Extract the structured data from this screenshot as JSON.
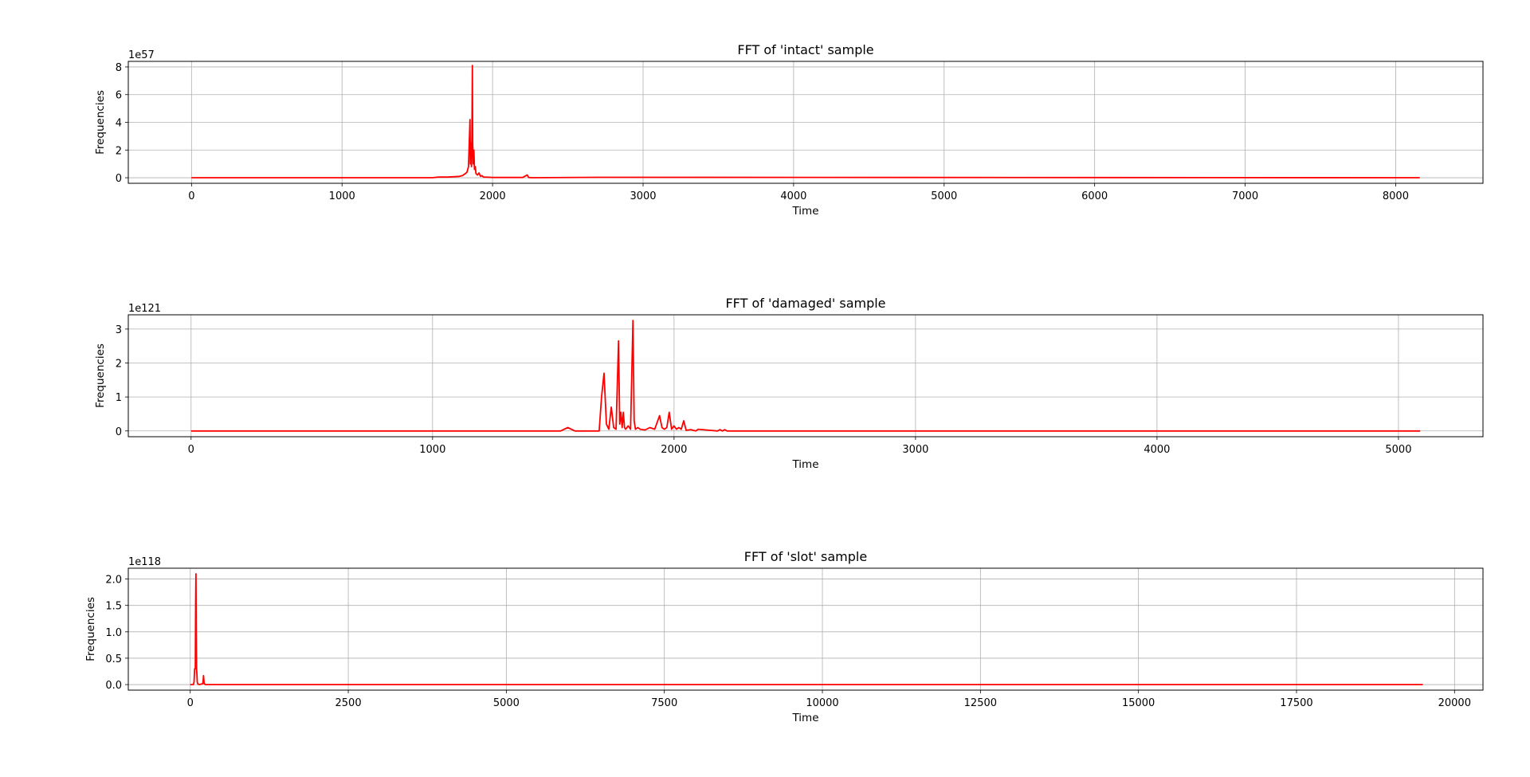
{
  "chart_data": [
    {
      "type": "line",
      "title": "FFT of 'intact' sample",
      "xlabel": "Time",
      "ylabel": "Frequencies",
      "y_offset_label": "1e57",
      "xlim": [
        -420,
        8580
      ],
      "ylim": [
        -0.4,
        8.4
      ],
      "xticks": [
        0,
        1000,
        2000,
        3000,
        4000,
        5000,
        6000,
        7000,
        8000
      ],
      "yticks": [
        0,
        2,
        4,
        6,
        8
      ],
      "ytick_labels": [
        "0",
        "2",
        "4",
        "6",
        "8"
      ],
      "grid": true,
      "color": "#ff0000",
      "series": [
        {
          "x": [
            0,
            1600,
            1640,
            1700,
            1750,
            1780,
            1800,
            1820,
            1830,
            1840,
            1850,
            1853,
            1857,
            1860,
            1863,
            1866,
            1868,
            1872,
            1876,
            1880,
            1885,
            1890,
            1900,
            1910,
            1920,
            1930,
            1940,
            1960,
            2000,
            2200,
            2230,
            2240,
            2260,
            2700,
            8160
          ],
          "y": [
            0,
            0,
            0.05,
            0.05,
            0.08,
            0.1,
            0.15,
            0.3,
            0.4,
            0.8,
            4.2,
            1.0,
            2.5,
            0.8,
            3.0,
            8.1,
            2.5,
            1.0,
            2.0,
            0.6,
            0.8,
            0.3,
            0.2,
            0.35,
            0.1,
            0.15,
            0.05,
            0.04,
            0.02,
            0.02,
            0.2,
            0.02,
            0,
            0.03,
            0
          ]
        }
      ]
    },
    {
      "type": "line",
      "title": "FFT of 'damaged' sample",
      "xlabel": "Time",
      "ylabel": "Frequencies",
      "y_offset_label": "1e121",
      "xlim": [
        -260,
        5350
      ],
      "ylim": [
        -0.17,
        3.42
      ],
      "xticks": [
        0,
        1000,
        2000,
        3000,
        4000,
        5000
      ],
      "yticks": [
        0,
        1,
        2,
        3
      ],
      "ytick_labels": [
        "0",
        "1",
        "2",
        "3"
      ],
      "grid": true,
      "color": "#ff0000",
      "series": [
        {
          "x": [
            0,
            1530,
            1560,
            1590,
            1690,
            1700,
            1710,
            1720,
            1730,
            1740,
            1750,
            1760,
            1770,
            1775,
            1780,
            1785,
            1790,
            1795,
            1800,
            1810,
            1820,
            1830,
            1835,
            1840,
            1850,
            1860,
            1880,
            1900,
            1920,
            1940,
            1950,
            1960,
            1970,
            1980,
            1990,
            2000,
            2010,
            2020,
            2030,
            2040,
            2050,
            2070,
            2090,
            2100,
            2180,
            2190,
            2200,
            2210,
            2220,
            5090
          ],
          "y": [
            0,
            0,
            0.1,
            0,
            0,
            1.0,
            1.7,
            0.2,
            0.05,
            0.7,
            0.1,
            0.05,
            2.65,
            0.2,
            0.55,
            0.1,
            0.55,
            0.1,
            0.05,
            0.15,
            0.05,
            3.25,
            0.3,
            0.05,
            0.1,
            0.05,
            0.03,
            0.1,
            0.05,
            0.45,
            0.1,
            0.05,
            0.1,
            0.55,
            0.05,
            0.15,
            0.05,
            0.1,
            0.05,
            0.3,
            0.02,
            0.04,
            0,
            0.05,
            0,
            0.04,
            0,
            0.04,
            0,
            0
          ]
        }
      ]
    },
    {
      "type": "line",
      "title": "FFT of 'slot' sample",
      "xlabel": "Time",
      "ylabel": "Frequencies",
      "y_offset_label": "1e118",
      "xlim": [
        -980,
        20450
      ],
      "ylim": [
        -0.105,
        2.205
      ],
      "xticks": [
        0,
        2500,
        5000,
        7500,
        10000,
        12500,
        15000,
        17500,
        20000
      ],
      "yticks": [
        0,
        0.5,
        1,
        1.5,
        2
      ],
      "ytick_labels": [
        "0.0",
        "0.5",
        "1.0",
        "1.5",
        "2.0"
      ],
      "grid": true,
      "color": "#ff0000",
      "series": [
        {
          "x": [
            0,
            50,
            60,
            70,
            80,
            85,
            90,
            95,
            100,
            105,
            110,
            120,
            150,
            200,
            210,
            220,
            240,
            300,
            19500
          ],
          "y": [
            0,
            0,
            0.05,
            0.3,
            0.3,
            1.5,
            2.1,
            1.0,
            0.3,
            0.2,
            0.05,
            0.01,
            0,
            0.02,
            0.17,
            0.02,
            0,
            0,
            0
          ]
        }
      ]
    }
  ]
}
